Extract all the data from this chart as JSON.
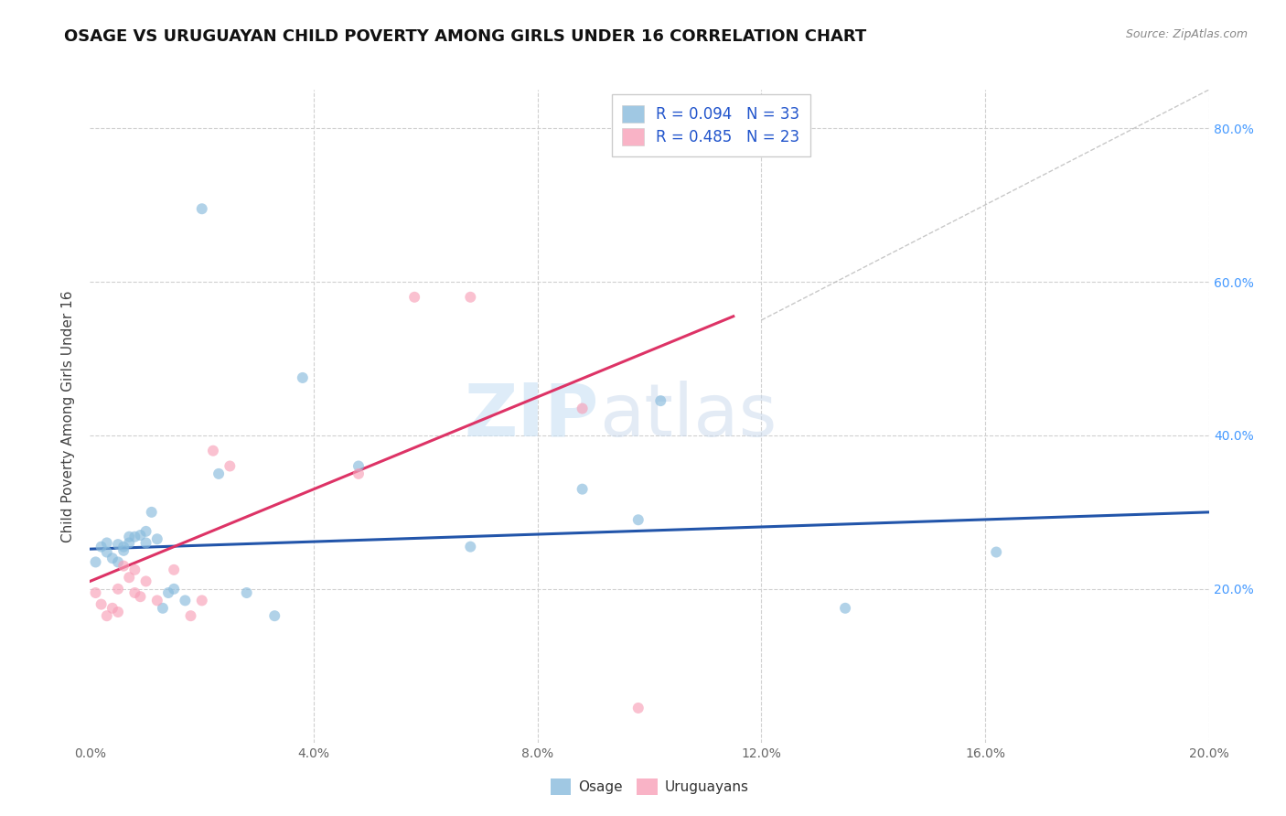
{
  "title": "OSAGE VS URUGUAYAN CHILD POVERTY AMONG GIRLS UNDER 16 CORRELATION CHART",
  "source": "Source: ZipAtlas.com",
  "ylabel": "Child Poverty Among Girls Under 16",
  "xlim": [
    0.0,
    0.2
  ],
  "ylim": [
    0.0,
    0.85
  ],
  "xticks": [
    0.0,
    0.04,
    0.08,
    0.12,
    0.16,
    0.2
  ],
  "yticks_right": [
    0.2,
    0.4,
    0.6,
    0.8
  ],
  "ytick_labels_right": [
    "20.0%",
    "40.0%",
    "60.0%",
    "80.0%"
  ],
  "legend_items": [
    {
      "label": "R = 0.094   N = 33",
      "color": "#a8c8e8"
    },
    {
      "label": "R = 0.485   N = 23",
      "color": "#f8b8c8"
    }
  ],
  "legend_bottom": [
    "Osage",
    "Uruguayans"
  ],
  "osage_x": [
    0.001,
    0.002,
    0.003,
    0.003,
    0.004,
    0.005,
    0.005,
    0.006,
    0.006,
    0.007,
    0.007,
    0.008,
    0.009,
    0.01,
    0.01,
    0.011,
    0.012,
    0.013,
    0.014,
    0.015,
    0.017,
    0.02,
    0.023,
    0.028,
    0.033,
    0.038,
    0.048,
    0.068,
    0.088,
    0.098,
    0.102,
    0.135,
    0.162
  ],
  "osage_y": [
    0.235,
    0.255,
    0.248,
    0.26,
    0.24,
    0.235,
    0.258,
    0.25,
    0.255,
    0.26,
    0.268,
    0.268,
    0.27,
    0.275,
    0.26,
    0.3,
    0.265,
    0.175,
    0.195,
    0.2,
    0.185,
    0.695,
    0.35,
    0.195,
    0.165,
    0.475,
    0.36,
    0.255,
    0.33,
    0.29,
    0.445,
    0.175,
    0.248
  ],
  "uruguayan_x": [
    0.001,
    0.002,
    0.003,
    0.004,
    0.005,
    0.005,
    0.006,
    0.007,
    0.008,
    0.008,
    0.009,
    0.01,
    0.012,
    0.015,
    0.018,
    0.02,
    0.022,
    0.025,
    0.048,
    0.058,
    0.068,
    0.088,
    0.098
  ],
  "uruguayan_y": [
    0.195,
    0.18,
    0.165,
    0.175,
    0.17,
    0.2,
    0.23,
    0.215,
    0.195,
    0.225,
    0.19,
    0.21,
    0.185,
    0.225,
    0.165,
    0.185,
    0.38,
    0.36,
    0.35,
    0.58,
    0.58,
    0.435,
    0.045
  ],
  "blue_line_x": [
    0.0,
    0.2
  ],
  "blue_line_y": [
    0.252,
    0.3
  ],
  "pink_line_x": [
    0.0,
    0.115
  ],
  "pink_line_y": [
    0.21,
    0.555
  ],
  "diag_line_x": [
    0.12,
    0.2
  ],
  "diag_line_y": [
    0.55,
    0.85
  ],
  "watermark_zip": "ZIP",
  "watermark_atlas": "atlas",
  "title_fontsize": 13,
  "axis_label_fontsize": 11,
  "tick_fontsize": 10,
  "marker_size": 75,
  "background_color": "#ffffff",
  "grid_color": "#d0d0d0",
  "blue_color": "#88bbdd",
  "pink_color": "#f8a0b8",
  "blue_line_color": "#2255aa",
  "pink_line_color": "#dd3366",
  "diag_color": "#bbbbbb",
  "right_tick_color": "#4499ff"
}
